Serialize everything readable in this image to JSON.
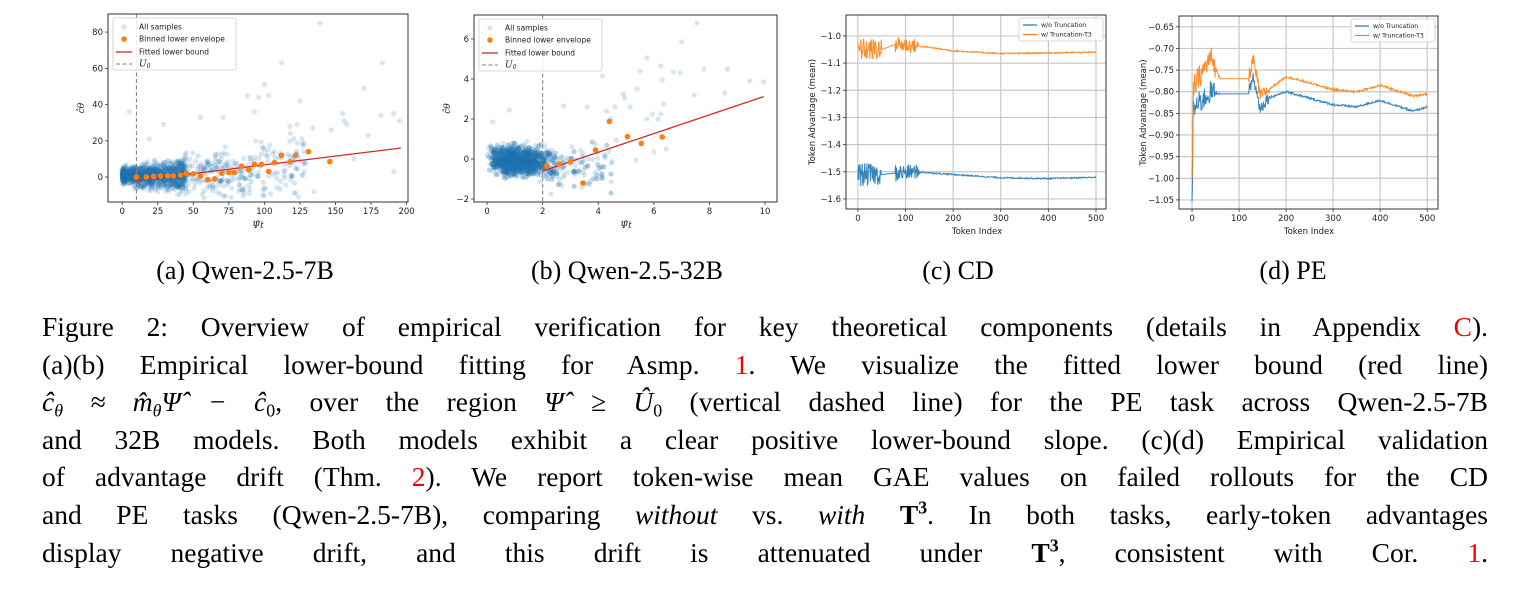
{
  "colors": {
    "samples": "#1f77b4",
    "binned": "#ff7f0e",
    "fit": "#d62728",
    "u0": "#7f7f7f",
    "wo": "#1f77b4",
    "w": "#ff7f0e",
    "link": "#ee0000"
  },
  "subcaptions": [
    "(a) Qwen-2.5-7B",
    "(b) Qwen-2.5-32B",
    "(c) CD",
    "(d) PE"
  ],
  "caption": {
    "lines": [
      [
        {
          "t": "Figure 2:  Overview of empirical verification for key theoretical components (details in Appendix "
        },
        {
          "t": "C",
          "c": "red"
        },
        {
          "t": ")."
        }
      ],
      [
        {
          "t": "(a)(b) Empirical lower-bound fitting for Asmp. "
        },
        {
          "t": "1",
          "c": "red"
        },
        {
          "t": ".  We visualize the fitted lower bound (red line)"
        }
      ],
      [
        {
          "t": "ĉ",
          "c": "math"
        },
        {
          "t": "θ",
          "c": "math",
          "sub": true
        },
        {
          "t": " ≈ m̂",
          "c": "math"
        },
        {
          "t": "θ",
          "c": "math",
          "sub": true
        },
        {
          "t": "Ψ̂ − ĉ",
          "c": "math"
        },
        {
          "t": "0",
          "sub": true
        },
        {
          "t": ", over the region "
        },
        {
          "t": "Ψ̂ ≥ Û",
          "c": "math"
        },
        {
          "t": "0",
          "sub": true
        },
        {
          "t": " (vertical dashed line) for the PE task across Qwen-2.5-7B"
        }
      ],
      [
        {
          "t": "and 32B models. Both models exhibit a clear positive lower-bound slope. (c)(d) Empirical validation"
        }
      ],
      [
        {
          "t": "of advantage drift (Thm. "
        },
        {
          "t": "2",
          "c": "red"
        },
        {
          "t": "). We report token-wise mean GAE values on failed rollouts for the CD"
        }
      ],
      [
        {
          "t": "and PE tasks (Qwen-2.5-7B), comparing "
        },
        {
          "t": "without",
          "c": "it"
        },
        {
          "t": " vs. "
        },
        {
          "t": "with",
          "c": "it"
        },
        {
          "t": " "
        },
        {
          "t": "T",
          "c": "bf"
        },
        {
          "t": "3",
          "c": "bf",
          "sup": true
        },
        {
          "t": ". In both tasks, early-token advantages"
        }
      ],
      [
        {
          "t": "display negative drift, and this drift is attenuated under "
        },
        {
          "t": "T",
          "c": "bf"
        },
        {
          "t": "3",
          "c": "bf",
          "sup": true
        },
        {
          "t": ", consistent with Cor. "
        },
        {
          "t": "1",
          "c": "red"
        },
        {
          "t": "."
        }
      ]
    ]
  },
  "chart_data": [
    {
      "type": "scatter",
      "panel": "a",
      "xlabel": "Ψ̂t",
      "ylabel": "ĉθ",
      "xlim": [
        -10,
        201
      ],
      "ylim": [
        -13.8,
        90
      ],
      "xticks": [
        0,
        25,
        50,
        75,
        100,
        125,
        150,
        175,
        200
      ],
      "yticks": [
        0,
        20,
        40,
        60,
        80
      ],
      "legend": {
        "position": "top-left",
        "entries": [
          "All samples",
          "Binned lower envelope",
          "Fitted lower bound",
          "U0"
        ]
      },
      "u0": 10,
      "samples_outliers": [
        [
          139,
          85
        ],
        [
          112,
          63
        ],
        [
          183,
          63
        ],
        [
          170,
          49
        ],
        [
          100,
          51
        ],
        [
          103,
          45
        ],
        [
          88,
          45
        ],
        [
          96,
          44
        ],
        [
          125,
          42
        ],
        [
          93,
          36
        ],
        [
          5,
          36
        ],
        [
          155,
          35
        ],
        [
          182,
          34
        ],
        [
          191,
          35
        ],
        [
          195,
          31
        ],
        [
          156,
          31
        ],
        [
          158,
          29
        ],
        [
          55,
          33
        ],
        [
          71,
          33
        ],
        [
          118,
          28
        ],
        [
          123,
          29
        ],
        [
          147,
          26
        ],
        [
          134,
          27
        ],
        [
          173,
          23
        ],
        [
          19,
          21
        ],
        [
          29,
          29
        ],
        [
          163,
          10
        ],
        [
          191,
          3
        ],
        [
          135,
          -8
        ],
        [
          47,
          -8
        ],
        [
          60,
          -6
        ],
        [
          100,
          -6
        ]
      ],
      "binned": [
        [
          10,
          0
        ],
        [
          17,
          0
        ],
        [
          22,
          0.3
        ],
        [
          27,
          0.6
        ],
        [
          32,
          0.6
        ],
        [
          36,
          0.6
        ],
        [
          41,
          1
        ],
        [
          45,
          2
        ],
        [
          50,
          1.8
        ],
        [
          55,
          0.5
        ],
        [
          60,
          -1.5
        ],
        [
          65,
          -1
        ],
        [
          70,
          2
        ],
        [
          75,
          2.5
        ],
        [
          79,
          2.5
        ],
        [
          84,
          6
        ],
        [
          89,
          4
        ],
        [
          93,
          7
        ],
        [
          98,
          7
        ],
        [
          103,
          3
        ],
        [
          107,
          8
        ],
        [
          112,
          12
        ],
        [
          118,
          8.5
        ],
        [
          122,
          12
        ],
        [
          131,
          14
        ],
        [
          146,
          8.5
        ]
      ],
      "fit": [
        [
          10,
          -2
        ],
        [
          196,
          16
        ]
      ]
    },
    {
      "type": "scatter",
      "panel": "b",
      "xlabel": "Ψ̂t",
      "ylabel": "ĉθ",
      "xlim": [
        -0.47,
        10.43
      ],
      "ylim": [
        -2.15,
        7.2
      ],
      "xticks": [
        0,
        2,
        4,
        6,
        8,
        10
      ],
      "yticks": [
        -2,
        0,
        2,
        4,
        6
      ],
      "legend": {
        "position": "top-left",
        "entries": [
          "All samples",
          "Binned lower envelope",
          "Fitted lower bound",
          "U0"
        ]
      },
      "u0": 2,
      "samples_outliers": [
        [
          7.55,
          6.8
        ],
        [
          7.0,
          5.85
        ],
        [
          5.75,
          5.05
        ],
        [
          6.25,
          4.65
        ],
        [
          8.65,
          4.5
        ],
        [
          7.8,
          4.5
        ],
        [
          5.5,
          4.4
        ],
        [
          6.7,
          4.35
        ],
        [
          6.95,
          4.3
        ],
        [
          4.15,
          4.15
        ],
        [
          6.3,
          3.95
        ],
        [
          9.45,
          3.9
        ],
        [
          9.95,
          3.85
        ],
        [
          5.4,
          3.5
        ],
        [
          8.55,
          3.3
        ],
        [
          7.45,
          3.2
        ],
        [
          4.9,
          3.25
        ],
        [
          4.95,
          3.05
        ],
        [
          6.35,
          2.75
        ],
        [
          5.15,
          2.6
        ],
        [
          4.6,
          2.6
        ],
        [
          3.6,
          2.6
        ],
        [
          2.75,
          2.65
        ],
        [
          4.3,
          2.4
        ],
        [
          5.95,
          2.25
        ],
        [
          6.25,
          2.25
        ],
        [
          5.75,
          2.0
        ],
        [
          6.15,
          2.0
        ],
        [
          4.45,
          2.0
        ],
        [
          0.8,
          2.45
        ],
        [
          0.2,
          1.85
        ],
        [
          6.0,
          0.35
        ],
        [
          5.35,
          -0.05
        ],
        [
          6.45,
          0.5
        ],
        [
          4.65,
          0.95
        ],
        [
          3.5,
          -0.8
        ],
        [
          3.4,
          -1.4
        ],
        [
          2.3,
          -1.75
        ],
        [
          2.55,
          -1.3
        ]
      ],
      "binned": [
        [
          2.15,
          -0.35
        ],
        [
          2.6,
          -0.25
        ],
        [
          3.0,
          -0.15
        ],
        [
          3.45,
          -1.2
        ],
        [
          3.9,
          0.45
        ],
        [
          4.4,
          1.88
        ],
        [
          5.05,
          1.12
        ],
        [
          5.55,
          0.78
        ],
        [
          6.3,
          1.1
        ]
      ],
      "fit": [
        [
          2,
          -0.6
        ],
        [
          9.95,
          3.12
        ]
      ]
    },
    {
      "type": "line",
      "panel": "c",
      "xlabel": "Token Index",
      "ylabel": "Token Advantage (mean)",
      "xlim": [
        -25,
        521
      ],
      "ylim": [
        -1.637,
        -0.923
      ],
      "xticks": [
        0,
        100,
        200,
        300,
        400,
        500
      ],
      "yticks": [
        -1.0,
        -1.1,
        -1.2,
        -1.3,
        -1.4,
        -1.5,
        -1.6
      ],
      "ytick_labels": [
        "−1.0",
        "−1.1",
        "−1.2",
        "−1.3",
        "−1.4",
        "−1.5",
        "−1.6"
      ],
      "grid": true,
      "legend": {
        "position": "top-right"
      },
      "noisy_until": 130,
      "flat_range": [
        50,
        78
      ],
      "early_noise": 0.045,
      "series": [
        {
          "name": "w/o Truncation",
          "anchors": [
            [
              0,
              -1.51
            ],
            [
              50,
              -1.51
            ],
            [
              80,
              -1.505
            ],
            [
              120,
              -1.5
            ],
            [
              200,
              -1.51
            ],
            [
              300,
              -1.522
            ],
            [
              400,
              -1.525
            ],
            [
              500,
              -1.52
            ]
          ]
        },
        {
          "name": "w/ Truncation-T3",
          "anchors": [
            [
              0,
              -1.05
            ],
            [
              50,
              -1.05
            ],
            [
              80,
              -1.03
            ],
            [
              150,
              -1.042
            ],
            [
              200,
              -1.055
            ],
            [
              300,
              -1.065
            ],
            [
              500,
              -1.06
            ]
          ]
        }
      ]
    },
    {
      "type": "line",
      "panel": "d",
      "xlabel": "Token Index",
      "ylabel": "Token Advantage (mean)",
      "xlim": [
        -27.7,
        523
      ],
      "ylim": [
        -1.071,
        -0.625
      ],
      "xticks": [
        0,
        100,
        200,
        300,
        400,
        500
      ],
      "yticks": [
        -0.65,
        -0.7,
        -0.75,
        -0.8,
        -0.85,
        -0.9,
        -0.95,
        -1.0,
        -1.05
      ],
      "ytick_labels": [
        "−0.65",
        "−0.70",
        "−0.75",
        "−0.80",
        "−0.85",
        "−0.90",
        "−0.95",
        "−1.00",
        "−1.05"
      ],
      "grid": true,
      "legend": {
        "position": "top-right"
      },
      "noisy_until": 50,
      "flat_range": [
        60,
        120
      ],
      "early_noise": 0.03,
      "series": [
        {
          "name": "w/o Truncation",
          "anchors": [
            [
              0,
              -1.05
            ],
            [
              3,
              -0.84
            ],
            [
              40,
              -0.8
            ],
            [
              60,
              -0.805
            ],
            [
              120,
              -0.805
            ],
            [
              130,
              -0.765
            ],
            [
              145,
              -0.84
            ],
            [
              160,
              -0.815
            ],
            [
              200,
              -0.8
            ],
            [
              300,
              -0.83
            ],
            [
              350,
              -0.835
            ],
            [
              400,
              -0.82
            ],
            [
              470,
              -0.845
            ],
            [
              500,
              -0.835
            ]
          ]
        },
        {
          "name": "w/ Truncation-T3",
          "anchors": [
            [
              0,
              -1.02
            ],
            [
              3,
              -0.79
            ],
            [
              40,
              -0.72
            ],
            [
              60,
              -0.77
            ],
            [
              120,
              -0.77
            ],
            [
              130,
              -0.725
            ],
            [
              145,
              -0.81
            ],
            [
              200,
              -0.765
            ],
            [
              300,
              -0.795
            ],
            [
              350,
              -0.8
            ],
            [
              400,
              -0.785
            ],
            [
              470,
              -0.81
            ],
            [
              500,
              -0.805
            ]
          ]
        }
      ]
    }
  ]
}
